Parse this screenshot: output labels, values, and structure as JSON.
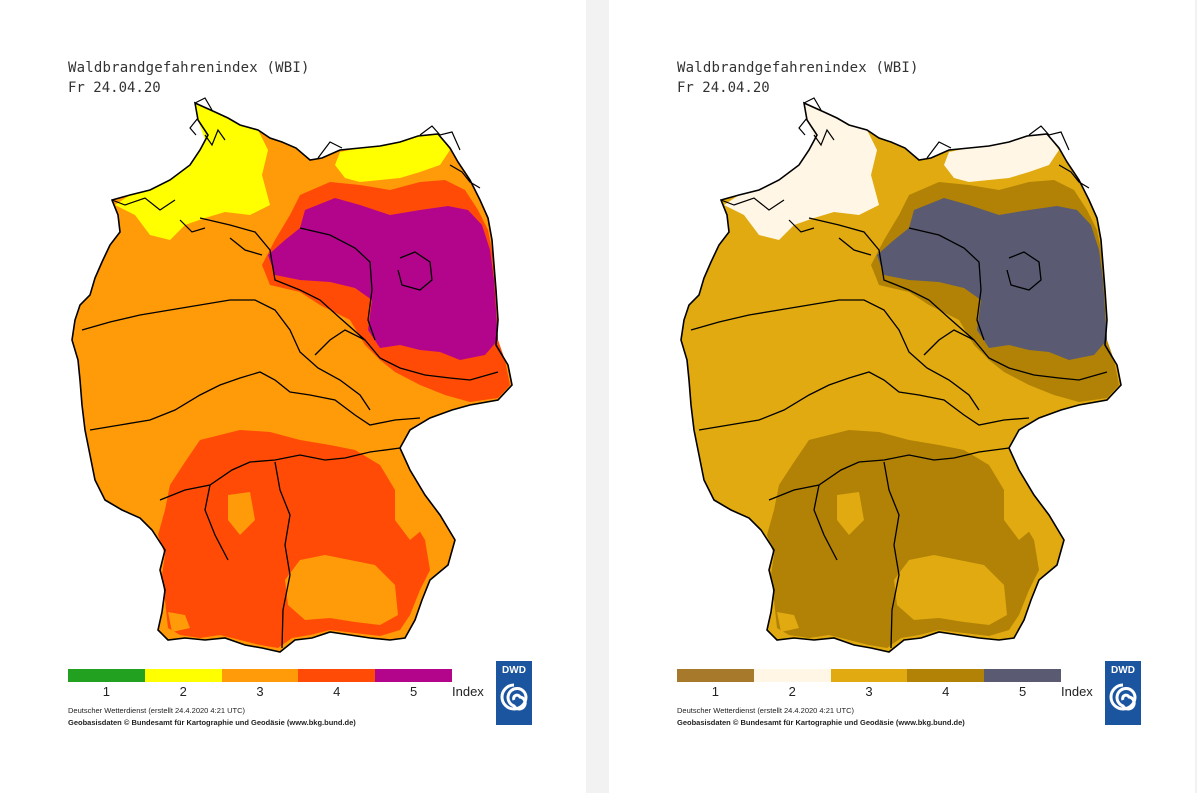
{
  "panels": [
    {
      "id": "panel-left",
      "title": "Waldbrandgefahrenindex (WBI)",
      "date": "Fr 24.04.20",
      "colors": {
        "i1": "#22a020",
        "i2": "#ffff00",
        "i3": "#ff9a08",
        "i4": "#ff4b06",
        "i5": "#b3058c"
      },
      "legend": [
        {
          "label": "1",
          "color": "#22a020"
        },
        {
          "label": "2",
          "color": "#ffff00"
        },
        {
          "label": "3",
          "color": "#ff9a08"
        },
        {
          "label": "4",
          "color": "#ff4b06"
        },
        {
          "label": "5",
          "color": "#b3058c"
        }
      ],
      "index_label": "Index",
      "credit_1": "Deutscher Wetterdienst (erstellt 24.4.2020 4:21 UTC)",
      "credit_2": "Geobasisdaten © Bundesamt für Kartographie und Geodäsie (www.bkg.bund.de)",
      "logo_text": "DWD"
    },
    {
      "id": "panel-right",
      "title": "Waldbrandgefahrenindex (WBI)",
      "date": "Fr 24.04.20",
      "colors": {
        "i1": "#a67a2a",
        "i2": "#fff6e6",
        "i3": "#e0aa10",
        "i4": "#b18205",
        "i5": "#5a5a72"
      },
      "legend": [
        {
          "label": "1",
          "color": "#a67a2a"
        },
        {
          "label": "2",
          "color": "#fff6e6"
        },
        {
          "label": "3",
          "color": "#e0aa10"
        },
        {
          "label": "4",
          "color": "#b18205"
        },
        {
          "label": "5",
          "color": "#5a5a72"
        }
      ],
      "index_label": "Index",
      "credit_1": "Deutscher Wetterdienst (erstellt 24.4.2020 4:21 UTC)",
      "credit_2": "Geobasisdaten © Bundesamt für Kartographie und Geodäsie (www.bkg.bund.de)",
      "logo_text": "DWD"
    }
  ]
}
